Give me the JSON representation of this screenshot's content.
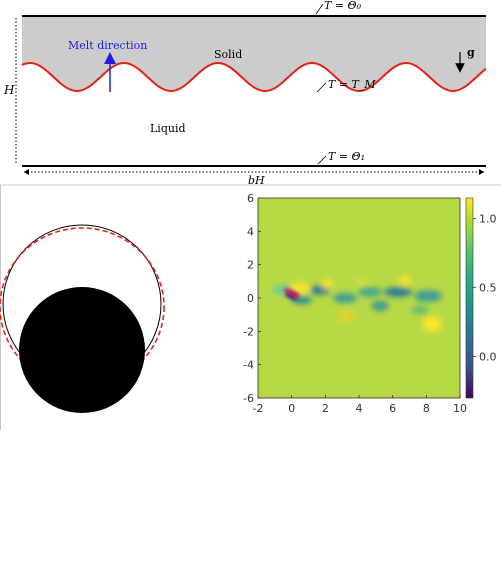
{
  "schematic": {
    "top_boundary_label": "T = Θ₀",
    "interface_label": "T = T_M",
    "bottom_boundary_label": "T = Θ₁",
    "solid_label": "Solid",
    "liquid_label": "Liquid",
    "melt_direction_label": "Melt direction",
    "gravity_label": "g",
    "height_label": "H",
    "width_label": "bH",
    "colors": {
      "solid_fill": "#cccccc",
      "interface": "#e2231a",
      "melt_arrow": "#1f1fe0"
    }
  },
  "particle_panel": {
    "colors": {
      "body": "#000000",
      "outline": "#000000",
      "dashed": "#e2231a"
    }
  },
  "field_plot": {
    "x_ticks": [
      "-2",
      "0",
      "2",
      "4",
      "6",
      "8",
      "10"
    ],
    "y_ticks": [
      "6",
      "4",
      "2",
      "0",
      "-2",
      "-4",
      "-6"
    ],
    "colorbar_ticks": [
      "1.0",
      "0.5",
      "0.0"
    ],
    "xlim": [
      -2,
      10
    ],
    "ylim": [
      -6,
      6
    ],
    "colorbar_range": [
      -0.3,
      1.15
    ],
    "background_value": 0.75,
    "colormap": "viridis"
  }
}
